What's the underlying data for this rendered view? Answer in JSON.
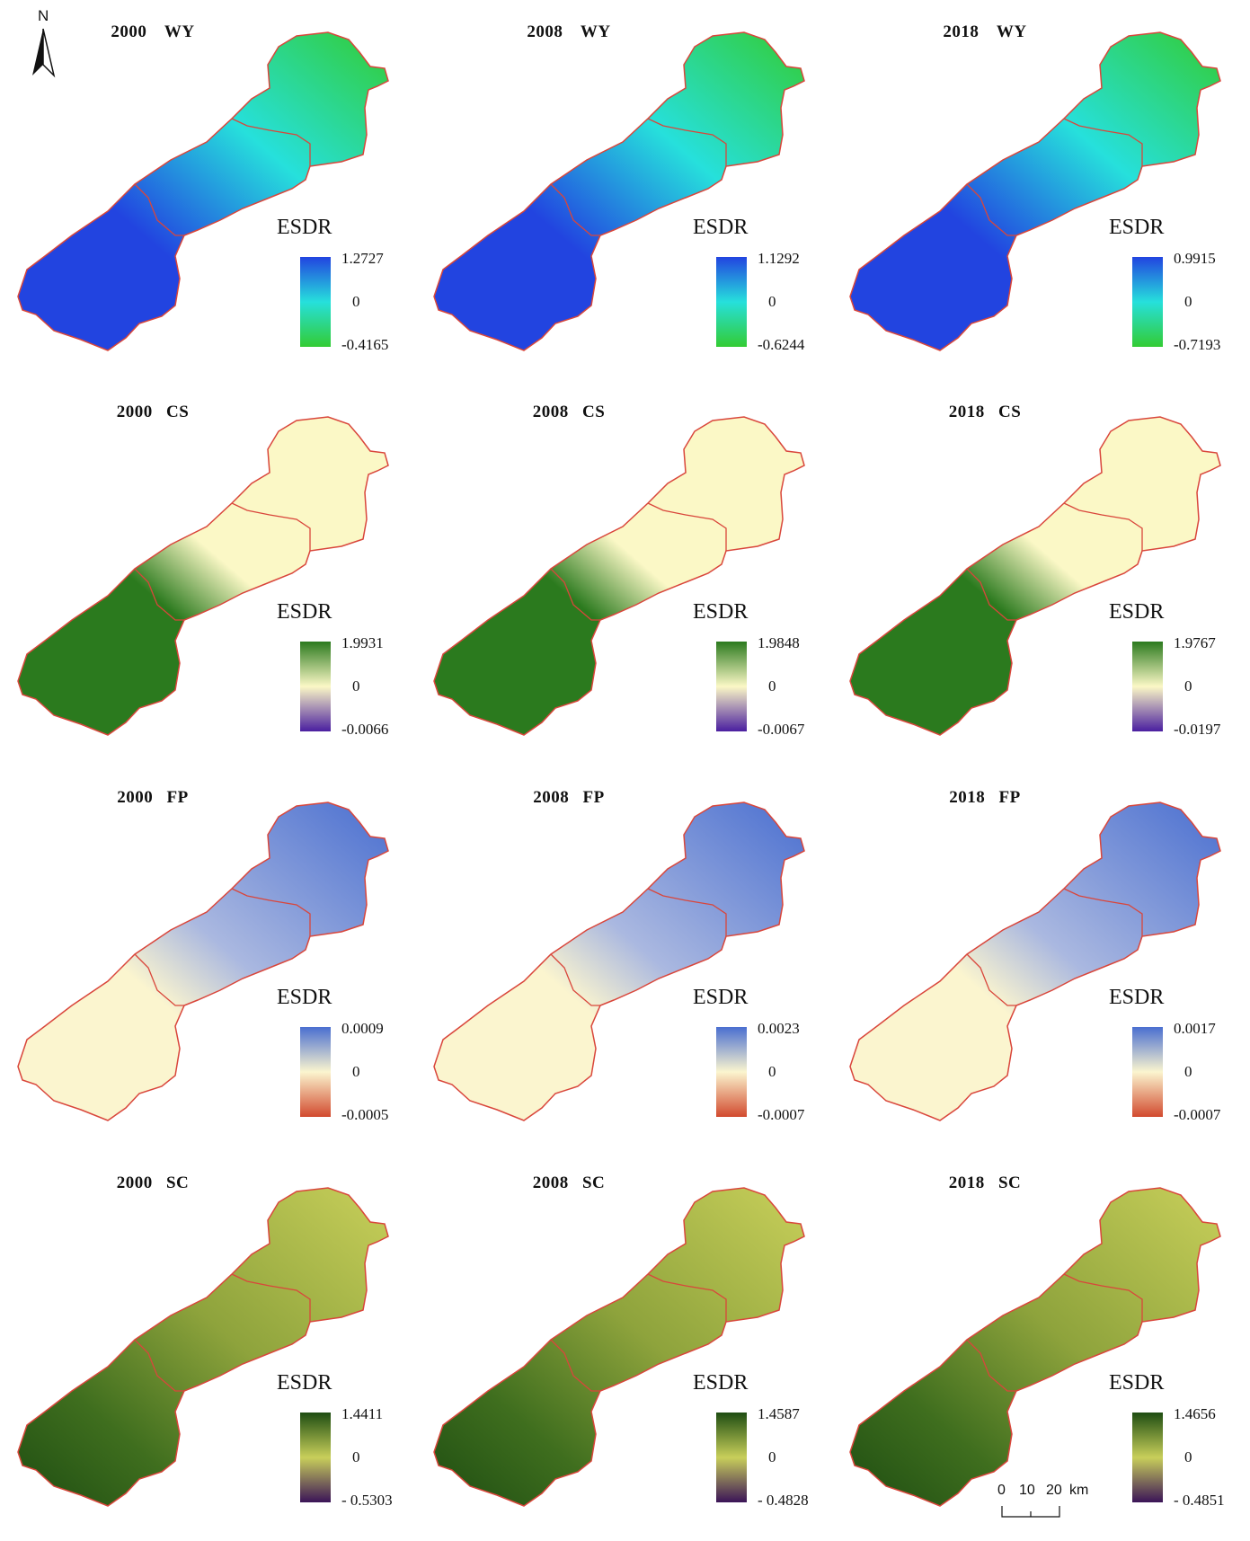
{
  "north": {
    "label": "N"
  },
  "scale": {
    "t0": "0",
    "t1": "10",
    "t2": "20",
    "unit": "km"
  },
  "legend_title": "ESDR",
  "panels": [
    {
      "title": "2000　WY",
      "max": "1.2727",
      "mid": "0",
      "min": "-0.4165",
      "ramp": "wy",
      "fill": "wy"
    },
    {
      "title": "2008　WY",
      "max": "1.1292",
      "mid": "0",
      "min": "-0.6244",
      "ramp": "wy",
      "fill": "wy"
    },
    {
      "title": "2018　WY",
      "max": "0.9915",
      "mid": "0",
      "min": "-0.7193",
      "ramp": "wy",
      "fill": "wy"
    },
    {
      "title": "2000 CS",
      "max": "1.9931",
      "mid": "0",
      "min": "-0.0066",
      "ramp": "cs",
      "fill": "cs"
    },
    {
      "title": "2008 CS",
      "max": "1.9848",
      "mid": "0",
      "min": "-0.0067",
      "ramp": "cs",
      "fill": "cs"
    },
    {
      "title": "2018 CS",
      "max": "1.9767",
      "mid": "0",
      "min": "-0.0197",
      "ramp": "cs",
      "fill": "cs"
    },
    {
      "title": "2000 FP",
      "max": "0.0009",
      "mid": "0",
      "min": "-0.0005",
      "ramp": "fp",
      "fill": "fp"
    },
    {
      "title": "2008 FP",
      "max": "0.0023",
      "mid": "0",
      "min": "-0.0007",
      "ramp": "fp",
      "fill": "fp"
    },
    {
      "title": "2018 FP",
      "max": "0.0017",
      "mid": "0",
      "min": "-0.0007",
      "ramp": "fp",
      "fill": "fp"
    },
    {
      "title": "2000 SC",
      "max": "1.4411",
      "mid": "0",
      "min": "- 0.5303",
      "ramp": "sc",
      "fill": "sc"
    },
    {
      "title": "2008 SC",
      "max": "1.4587",
      "mid": "0",
      "min": "- 0.4828",
      "ramp": "sc",
      "fill": "sc"
    },
    {
      "title": "2018 SC",
      "max": "1.4656",
      "mid": "0",
      "min": "- 0.4851",
      "ramp": "sc",
      "fill": "sc"
    }
  ],
  "colors": {
    "boundary": "#d9463b",
    "wy": [
      "#2244e0",
      "#26e0dc",
      "#33cc33"
    ],
    "cs": [
      "#2b7a1e",
      "#fbf8c6",
      "#4a1fa0"
    ],
    "fp": [
      "#4a6fd0",
      "#fbf5cf",
      "#d24a2e"
    ],
    "sc": [
      "#1e4d12",
      "#c8cf5a",
      "#3b1458"
    ]
  }
}
